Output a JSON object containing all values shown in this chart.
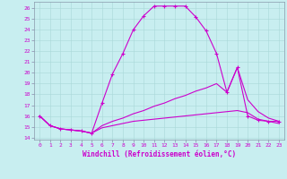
{
  "xlabel": "Windchill (Refroidissement éolien,°C)",
  "bg_color": "#c8eef0",
  "line_color": "#cc00cc",
  "xlim": [
    -0.5,
    23.5
  ],
  "ylim": [
    13.8,
    26.6
  ],
  "yticks": [
    14,
    15,
    16,
    17,
    18,
    19,
    20,
    21,
    22,
    23,
    24,
    25,
    26
  ],
  "xticks": [
    0,
    1,
    2,
    3,
    4,
    5,
    6,
    7,
    8,
    9,
    10,
    11,
    12,
    13,
    14,
    15,
    16,
    17,
    18,
    19,
    20,
    21,
    22,
    23
  ],
  "series": [
    {
      "x": [
        0,
        1,
        2,
        3,
        4,
        5,
        6,
        7,
        8,
        9,
        10,
        11,
        12,
        13,
        14,
        15,
        16,
        17,
        18,
        19,
        20,
        21,
        22,
        23
      ],
      "y": [
        16.0,
        15.1,
        14.8,
        14.7,
        14.6,
        14.4,
        17.2,
        19.9,
        21.8,
        24.0,
        25.3,
        26.2,
        26.2,
        26.2,
        26.2,
        25.2,
        23.9,
        21.8,
        18.2,
        20.5,
        16.0,
        15.6,
        15.5,
        15.5
      ],
      "marker": true
    },
    {
      "x": [
        0,
        1,
        2,
        3,
        4,
        5,
        6,
        7,
        8,
        9,
        10,
        11,
        12,
        13,
        14,
        15,
        16,
        17,
        18,
        19,
        20,
        21,
        22,
        23
      ],
      "y": [
        16.0,
        15.1,
        14.8,
        14.7,
        14.6,
        14.4,
        15.1,
        15.5,
        15.8,
        16.2,
        16.5,
        16.9,
        17.2,
        17.6,
        17.9,
        18.3,
        18.6,
        19.0,
        18.2,
        20.5,
        17.5,
        16.4,
        15.8,
        15.5
      ],
      "marker": false
    },
    {
      "x": [
        0,
        1,
        2,
        3,
        4,
        5,
        6,
        7,
        8,
        9,
        10,
        11,
        12,
        13,
        14,
        15,
        16,
        17,
        18,
        19,
        20,
        21,
        22,
        23
      ],
      "y": [
        16.0,
        15.1,
        14.8,
        14.7,
        14.6,
        14.4,
        14.9,
        15.1,
        15.3,
        15.5,
        15.6,
        15.7,
        15.8,
        15.9,
        16.0,
        16.1,
        16.2,
        16.3,
        16.4,
        16.5,
        16.3,
        15.7,
        15.5,
        15.3
      ],
      "marker": false
    }
  ]
}
